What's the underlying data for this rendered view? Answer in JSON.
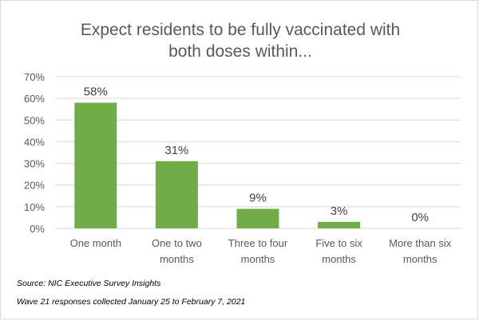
{
  "chart_data": {
    "type": "bar",
    "title_lines": [
      "Expect residents to be fully vaccinated with",
      "both doses within..."
    ],
    "categories": [
      [
        "One month"
      ],
      [
        "One to two",
        "months"
      ],
      [
        "Three to four",
        "months"
      ],
      [
        "Five to six",
        "months"
      ],
      [
        "More than six",
        "months"
      ]
    ],
    "values": [
      58,
      31,
      9,
      3,
      0
    ],
    "data_labels": [
      "58%",
      "31%",
      "9%",
      "3%",
      "0%"
    ],
    "y_ticks": [
      0,
      10,
      20,
      30,
      40,
      50,
      60,
      70
    ],
    "y_tick_labels": [
      "0%",
      "10%",
      "20%",
      "30%",
      "40%",
      "50%",
      "60%",
      "70%"
    ],
    "ylim": [
      0,
      70
    ],
    "grid": true,
    "bar_color": "#70ad47",
    "gridline_color": "#d9d9d9"
  },
  "footnotes": {
    "source": "Source: NIC Executive Survey Insights",
    "wave": "Wave 21 responses collected  January 25 to February 7, 2021"
  }
}
